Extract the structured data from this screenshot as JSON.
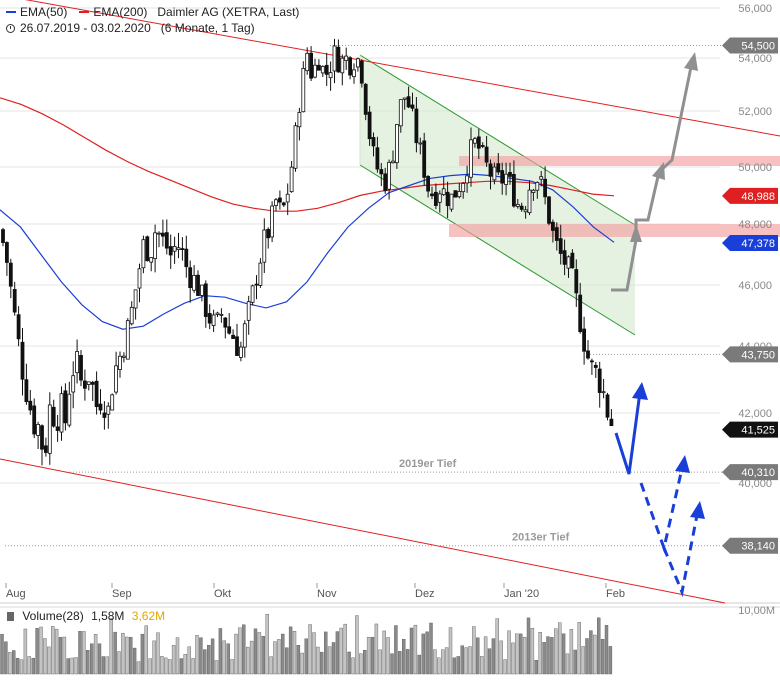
{
  "legend": {
    "ema50_label": "EMA(50)",
    "ema200_label": "EMA(200)",
    "instrument": "Daimler AG (XETRA, Last)",
    "date_range": "26.07.2019 - 03.02.2020",
    "period": "(6 Monate, 1 Tag)",
    "ema50_color": "#1a3fd8",
    "ema200_color": "#e02020"
  },
  "volume_legend": {
    "label": "Volume(28)",
    "value": "1,58M",
    "average": "3,62M",
    "average_color": "#e0a800"
  },
  "chart_data": {
    "type": "candlestick",
    "x_ticks": [
      "Aug",
      "Sep",
      "Okt",
      "Nov",
      "Dez",
      "Jan '20",
      "Feb"
    ],
    "y_ticks": [
      40000,
      42000,
      44000,
      46000,
      48000,
      50000,
      52000,
      54000,
      56000
    ],
    "y_tick_labels": [
      "40,000",
      "42,000",
      "44,000",
      "46,000",
      "48,000",
      "50,000",
      "52,000",
      "54,000",
      "56,000"
    ],
    "ylim": [
      36500,
      56000
    ],
    "price_labels": [
      {
        "value": 54500,
        "label": "54,500",
        "style": "gray"
      },
      {
        "value": 48988,
        "label": "48,988",
        "style": "red"
      },
      {
        "value": 47378,
        "label": "47,378",
        "style": "blue"
      },
      {
        "value": 43750,
        "label": "43,750",
        "style": "gray"
      },
      {
        "value": 41525,
        "label": "41,525",
        "style": "black"
      },
      {
        "value": 40310,
        "label": "40,310",
        "style": "gray"
      },
      {
        "value": 38140,
        "label": "38,140",
        "style": "gray"
      }
    ],
    "annotations": [
      "2019er Tief",
      "2013er Tief"
    ],
    "volume_axis_label": "10,00M",
    "series": [
      {
        "name": "EMA(50)",
        "color": "#1a3fd8",
        "values": [
          48500,
          47900,
          47000,
          46100,
          45350,
          44800,
          44550,
          44650,
          45050,
          45400,
          45650,
          45600,
          45400,
          45250,
          45450,
          46100,
          47050,
          47900,
          48550,
          49100,
          49350,
          49600,
          49700,
          49750,
          49700,
          49600,
          49500,
          49200,
          48600,
          47900,
          47400
        ]
      },
      {
        "name": "EMA(200)",
        "color": "#e02020",
        "values": [
          52500,
          52250,
          51900,
          51500,
          51050,
          50600,
          50200,
          49850,
          49550,
          49250,
          48950,
          48700,
          48550,
          48450,
          48450,
          48550,
          48750,
          49000,
          49150,
          49250,
          49350,
          49400,
          49450,
          49500,
          49500,
          49450,
          49350,
          49200,
          49050,
          48988
        ]
      }
    ]
  }
}
